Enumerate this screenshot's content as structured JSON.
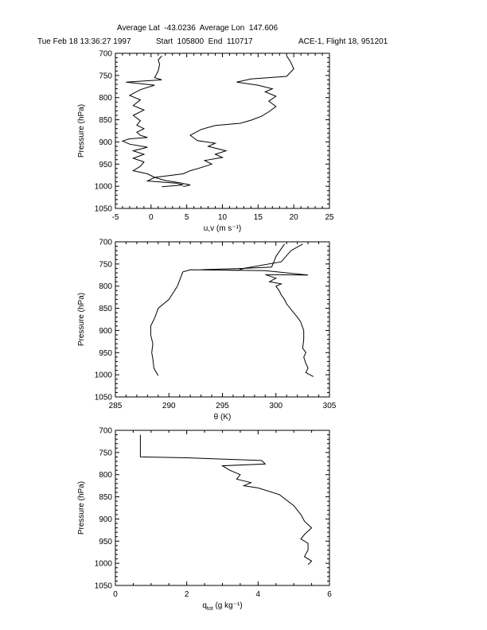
{
  "header": {
    "line1": "Average Lat  -43.0236  Average Lon  147.606",
    "date": "Tue Feb 18 13:36:27 1997",
    "times": "Start  105800  End  110717",
    "flight": "ACE-1, Flight 18, 951201"
  },
  "chart_data": [
    {
      "type": "line",
      "xlabel": "u,v (m s⁻¹)",
      "ylabel": "Pressure (hPa)",
      "xlim": [
        -5,
        25
      ],
      "ylim": [
        1050,
        700
      ],
      "xticks": [
        "-5",
        "0",
        "5",
        "10",
        "15",
        "20",
        "25"
      ],
      "yticks": [
        "700",
        "750",
        "800",
        "850",
        "900",
        "950",
        "1000",
        "1050"
      ],
      "series": [
        {
          "x": [
            1.5,
            1.0,
            1.2,
            1.0,
            0.5,
            1.5,
            -3.5,
            0.5,
            -1.5,
            -3.0,
            -1.5,
            -2.5,
            -1.0,
            -2.5,
            -1.5,
            -2.0,
            -1.0,
            -2.0,
            -1.5,
            -0.5,
            -3.0,
            -4.0,
            -3.0,
            -0.5,
            -2.5,
            -1.0,
            -2.5,
            -1.0,
            -1.5,
            -2.5,
            -0.5,
            0.5,
            2.0,
            4.0,
            5.5,
            4.5
          ],
          "y": [
            706,
            715,
            725,
            740,
            755,
            760,
            765,
            772,
            782,
            795,
            805,
            818,
            828,
            840,
            852,
            862,
            870,
            878,
            885,
            890,
            893,
            898,
            905,
            912,
            920,
            928,
            937,
            945,
            955,
            965,
            972,
            980,
            987,
            992,
            997,
            1001
          ]
        },
        {
          "x": [
            19.0,
            19.5,
            20.0,
            19.0,
            14.0,
            12.0,
            15.0,
            17.0,
            16.0,
            17.5,
            16.5,
            17.5,
            16.5,
            15.5,
            14.0,
            12.5,
            9.0,
            7.0,
            5.5,
            6.5,
            9.0,
            8.0,
            10.5,
            9.0,
            10.0,
            7.5,
            8.5,
            7.0,
            5.5,
            4.5,
            0.5,
            -0.5,
            3.5,
            4.5,
            1.5
          ],
          "y": [
            706,
            718,
            735,
            752,
            758,
            765,
            772,
            780,
            787,
            797,
            808,
            820,
            832,
            842,
            851,
            858,
            863,
            872,
            885,
            897,
            903,
            910,
            920,
            928,
            935,
            942,
            950,
            958,
            965,
            972,
            980,
            988,
            993,
            997,
            1001
          ]
        }
      ]
    },
    {
      "type": "line",
      "xlabel": "θ (K)",
      "ylabel": "Pressure (hPa)",
      "xlim": [
        285,
        305
      ],
      "ylim": [
        1050,
        700
      ],
      "xticks": [
        "285",
        "290",
        "295",
        "300",
        "305"
      ],
      "yticks": [
        "700",
        "750",
        "800",
        "850",
        "900",
        "950",
        "1000",
        "1050"
      ],
      "series": [
        {
          "x": [
            300.8,
            300.0,
            299.6,
            297.0,
            296.5,
            292.0,
            291.3,
            290.8,
            290.0,
            289.0,
            288.7,
            288.3,
            288.3,
            288.5,
            288.4,
            288.5,
            288.6,
            289.0
          ],
          "y": [
            705,
            733,
            757,
            760,
            764,
            763,
            768,
            800,
            830,
            850,
            870,
            890,
            910,
            930,
            950,
            965,
            985,
            1002
          ]
        },
        {
          "x": [
            302.5,
            301.4,
            300.5,
            297.0,
            293.0,
            299.0,
            303.0,
            299.0,
            300.0,
            299.4,
            300.5,
            300.0,
            300.3,
            300.5,
            300.8,
            301.0,
            301.5,
            302.0,
            302.3,
            302.6,
            302.6,
            302.5,
            302.8,
            302.6,
            302.8,
            303.0,
            302.8,
            303.5
          ],
          "y": [
            705,
            720,
            745,
            760,
            763,
            765,
            775,
            774,
            782,
            790,
            795,
            800,
            810,
            820,
            830,
            840,
            855,
            870,
            880,
            900,
            920,
            940,
            950,
            960,
            975,
            985,
            995,
            1004
          ]
        }
      ]
    },
    {
      "type": "line",
      "xlabel": "q",
      "xlabel_sub": "tot",
      "xlabel_tail": " (g kg⁻¹)",
      "ylabel": "Pressure (hPa)",
      "xlim": [
        0,
        6
      ],
      "ylim": [
        1050,
        700
      ],
      "xticks": [
        "0",
        "2",
        "4",
        "6"
      ],
      "yticks": [
        "700",
        "750",
        "800",
        "850",
        "900",
        "950",
        "1000",
        "1050"
      ],
      "series": [
        {
          "x": [
            0.7,
            0.7,
            2.0,
            4.1,
            4.2,
            3.0,
            3.2,
            3.5,
            3.4,
            3.8,
            3.6,
            4.0,
            4.6,
            5.0,
            5.2,
            5.3,
            5.5,
            5.3,
            5.2,
            5.4,
            5.4,
            5.3,
            5.5,
            5.4
          ],
          "y": [
            710,
            760,
            762,
            768,
            776,
            780,
            790,
            800,
            810,
            818,
            825,
            830,
            845,
            870,
            890,
            905,
            920,
            935,
            945,
            955,
            970,
            985,
            995,
            1003
          ]
        }
      ]
    }
  ]
}
